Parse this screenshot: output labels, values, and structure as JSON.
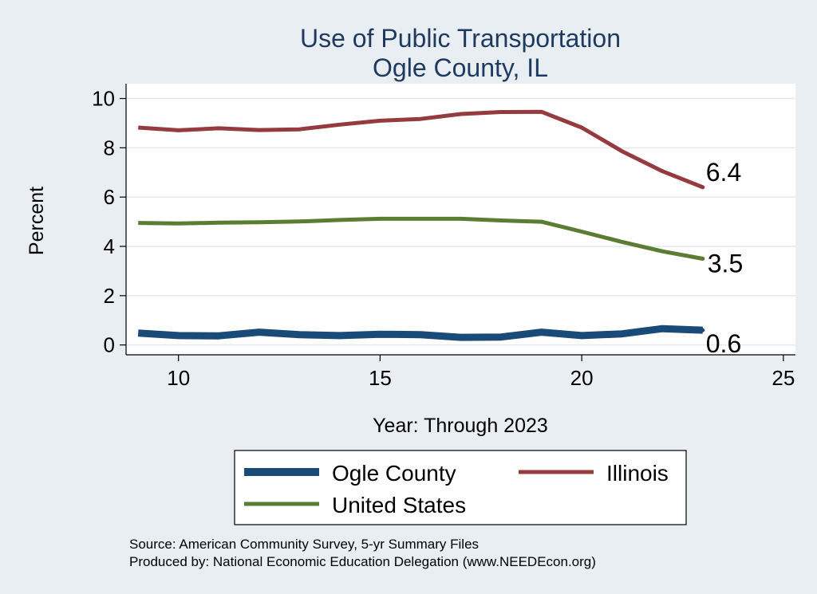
{
  "chart_data": {
    "type": "line",
    "title": "Use of Public Transportation",
    "subtitle": "Ogle County, IL",
    "xlabel": "Year: Through 2023",
    "ylabel": "Percent",
    "xlim": [
      8.7,
      25.3
    ],
    "ylim": [
      -0.4,
      10.6
    ],
    "xticks": [
      10,
      15,
      20,
      25
    ],
    "yticks": [
      0,
      2,
      4,
      6,
      8,
      10
    ],
    "grid": true,
    "legend_position": "bottom",
    "series": [
      {
        "name": "Ogle County",
        "color": "#1a4a78",
        "x": [
          9,
          10,
          11,
          12,
          13,
          14,
          15,
          16,
          17,
          18,
          19,
          20,
          21,
          22,
          23
        ],
        "y": [
          0.48,
          0.38,
          0.37,
          0.52,
          0.42,
          0.38,
          0.43,
          0.42,
          0.31,
          0.32,
          0.52,
          0.38,
          0.45,
          0.66,
          0.6
        ],
        "end_label": "0.6"
      },
      {
        "name": "Illinois",
        "color": "#953a3e",
        "x": [
          9,
          10,
          11,
          12,
          13,
          14,
          15,
          16,
          17,
          18,
          19,
          20,
          21,
          22,
          23
        ],
        "y": [
          8.82,
          8.71,
          8.79,
          8.72,
          8.75,
          8.94,
          9.1,
          9.17,
          9.37,
          9.45,
          9.46,
          8.82,
          7.86,
          7.05,
          6.4
        ],
        "end_label": "6.4"
      },
      {
        "name": "United States",
        "color": "#5a7c33",
        "x": [
          9,
          10,
          11,
          12,
          13,
          14,
          15,
          16,
          17,
          18,
          19,
          20,
          21,
          22,
          23
        ],
        "y": [
          4.95,
          4.93,
          4.96,
          4.98,
          5.01,
          5.07,
          5.12,
          5.12,
          5.12,
          5.05,
          5.0,
          4.6,
          4.18,
          3.8,
          3.5
        ],
        "end_label": "3.5"
      }
    ]
  },
  "legend": {
    "items": [
      {
        "label": "Ogle County",
        "color": "#1a4a78"
      },
      {
        "label": "Illinois",
        "color": "#953a3e"
      },
      {
        "label": "United States",
        "color": "#5a7c33"
      }
    ]
  },
  "footer": {
    "source": "Source: American Community Survey, 5-yr Summary Files",
    "producer": "Produced by: National Economic Education Delegation (www.NEEDEcon.org)"
  }
}
